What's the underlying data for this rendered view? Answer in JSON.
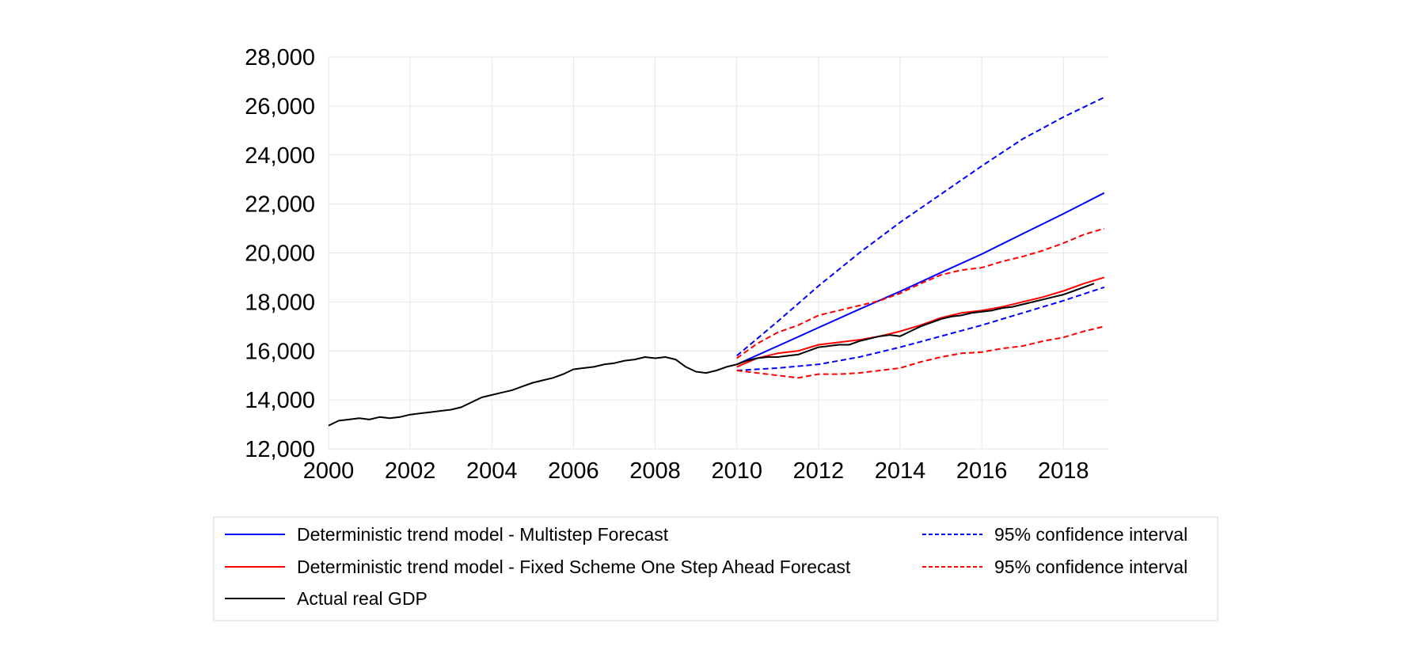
{
  "chart_data": {
    "type": "line",
    "title": "",
    "xlabel": "",
    "ylabel": "",
    "xlim": [
      2000.0,
      2019.1
    ],
    "ylim": [
      12000,
      28000
    ],
    "x_ticks": [
      {
        "value": 2000,
        "label": "2000"
      },
      {
        "value": 2002,
        "label": "2002"
      },
      {
        "value": 2004,
        "label": "2004"
      },
      {
        "value": 2006,
        "label": "2006"
      },
      {
        "value": 2008,
        "label": "2008"
      },
      {
        "value": 2010,
        "label": "2010"
      },
      {
        "value": 2012,
        "label": "2012"
      },
      {
        "value": 2014,
        "label": "2014"
      },
      {
        "value": 2016,
        "label": "2016"
      },
      {
        "value": 2018,
        "label": "2018"
      }
    ],
    "y_ticks": [
      {
        "value": 12000,
        "label": "12,000"
      },
      {
        "value": 14000,
        "label": "14,000"
      },
      {
        "value": 16000,
        "label": "16,000"
      },
      {
        "value": 18000,
        "label": "18,000"
      },
      {
        "value": 20000,
        "label": "20,000"
      },
      {
        "value": 22000,
        "label": "22,000"
      },
      {
        "value": 24000,
        "label": "24,000"
      },
      {
        "value": 26000,
        "label": "26,000"
      },
      {
        "value": 28000,
        "label": "28,000"
      }
    ],
    "grid": true,
    "legend_position": "bottom",
    "series": [
      {
        "name": "Deterministic trend model - Multistep Forecast",
        "color": "#0000ff",
        "dash": "solid",
        "points": [
          [
            2010.0,
            15450
          ],
          [
            2011.0,
            16200
          ],
          [
            2012.0,
            16950
          ],
          [
            2013.0,
            17700
          ],
          [
            2014.0,
            18430
          ],
          [
            2015.0,
            19200
          ],
          [
            2016.0,
            19950
          ],
          [
            2017.0,
            20780
          ],
          [
            2018.0,
            21600
          ],
          [
            2019.0,
            22450
          ]
        ]
      },
      {
        "name": "95% confidence interval",
        "color": "#0000ff",
        "dash": "dashed",
        "points": [
          [
            2010.0,
            15800
          ],
          [
            2011.0,
            17200
          ],
          [
            2012.0,
            18650
          ],
          [
            2013.0,
            20000
          ],
          [
            2014.0,
            21250
          ],
          [
            2015.0,
            22400
          ],
          [
            2016.0,
            23550
          ],
          [
            2017.0,
            24650
          ],
          [
            2018.0,
            25550
          ],
          [
            2019.0,
            26350
          ]
        ]
      },
      {
        "name": "",
        "color": "#0000ff",
        "dash": "dashed",
        "points": [
          [
            2010.0,
            15200
          ],
          [
            2011.0,
            15300
          ],
          [
            2012.0,
            15450
          ],
          [
            2013.0,
            15750
          ],
          [
            2014.0,
            16150
          ],
          [
            2015.0,
            16600
          ],
          [
            2016.0,
            17050
          ],
          [
            2017.0,
            17550
          ],
          [
            2018.0,
            18050
          ],
          [
            2019.0,
            18600
          ]
        ]
      },
      {
        "name": "Deterministic trend model - Fixed Scheme One Step Ahead Forecast",
        "color": "#ff0000",
        "dash": "solid",
        "points": [
          [
            2010.0,
            15350
          ],
          [
            2010.5,
            15700
          ],
          [
            2011.0,
            15900
          ],
          [
            2011.5,
            16000
          ],
          [
            2012.0,
            16250
          ],
          [
            2012.5,
            16350
          ],
          [
            2013.0,
            16450
          ],
          [
            2013.5,
            16600
          ],
          [
            2014.0,
            16800
          ],
          [
            2014.5,
            17050
          ],
          [
            2015.0,
            17350
          ],
          [
            2015.5,
            17550
          ],
          [
            2016.0,
            17650
          ],
          [
            2016.5,
            17800
          ],
          [
            2017.0,
            18000
          ],
          [
            2017.5,
            18200
          ],
          [
            2018.0,
            18450
          ],
          [
            2018.5,
            18750
          ],
          [
            2019.0,
            19000
          ]
        ]
      },
      {
        "name": "95% confidence interval",
        "color": "#ff0000",
        "dash": "dashed",
        "points": [
          [
            2010.0,
            15700
          ],
          [
            2010.5,
            16300
          ],
          [
            2011.0,
            16750
          ],
          [
            2011.5,
            17050
          ],
          [
            2012.0,
            17450
          ],
          [
            2012.5,
            17650
          ],
          [
            2013.0,
            17850
          ],
          [
            2013.5,
            18050
          ],
          [
            2014.0,
            18350
          ],
          [
            2014.5,
            18750
          ],
          [
            2015.0,
            19100
          ],
          [
            2015.5,
            19300
          ],
          [
            2016.0,
            19400
          ],
          [
            2016.5,
            19650
          ],
          [
            2017.0,
            19850
          ],
          [
            2017.5,
            20100
          ],
          [
            2018.0,
            20400
          ],
          [
            2018.5,
            20750
          ],
          [
            2019.0,
            21000
          ]
        ]
      },
      {
        "name": "",
        "color": "#ff0000",
        "dash": "dashed",
        "points": [
          [
            2010.0,
            15200
          ],
          [
            2010.5,
            15100
          ],
          [
            2011.0,
            15000
          ],
          [
            2011.5,
            14900
          ],
          [
            2012.0,
            15050
          ],
          [
            2012.5,
            15050
          ],
          [
            2013.0,
            15100
          ],
          [
            2013.5,
            15200
          ],
          [
            2014.0,
            15300
          ],
          [
            2014.5,
            15550
          ],
          [
            2015.0,
            15750
          ],
          [
            2015.5,
            15900
          ],
          [
            2016.0,
            15950
          ],
          [
            2016.5,
            16100
          ],
          [
            2017.0,
            16200
          ],
          [
            2017.5,
            16400
          ],
          [
            2018.0,
            16550
          ],
          [
            2018.5,
            16800
          ],
          [
            2019.0,
            17000
          ]
        ]
      },
      {
        "name": "Actual real GDP",
        "color": "#000000",
        "dash": "solid",
        "points": [
          [
            2000.0,
            12950
          ],
          [
            2000.25,
            13150
          ],
          [
            2000.5,
            13200
          ],
          [
            2000.75,
            13250
          ],
          [
            2001.0,
            13200
          ],
          [
            2001.25,
            13300
          ],
          [
            2001.5,
            13250
          ],
          [
            2001.75,
            13300
          ],
          [
            2002.0,
            13400
          ],
          [
            2002.25,
            13450
          ],
          [
            2002.5,
            13500
          ],
          [
            2002.75,
            13550
          ],
          [
            2003.0,
            13600
          ],
          [
            2003.25,
            13700
          ],
          [
            2003.5,
            13900
          ],
          [
            2003.75,
            14100
          ],
          [
            2004.0,
            14200
          ],
          [
            2004.25,
            14300
          ],
          [
            2004.5,
            14400
          ],
          [
            2004.75,
            14550
          ],
          [
            2005.0,
            14700
          ],
          [
            2005.25,
            14800
          ],
          [
            2005.5,
            14900
          ],
          [
            2005.75,
            15050
          ],
          [
            2006.0,
            15250
          ],
          [
            2006.25,
            15300
          ],
          [
            2006.5,
            15350
          ],
          [
            2006.75,
            15450
          ],
          [
            2007.0,
            15500
          ],
          [
            2007.25,
            15600
          ],
          [
            2007.5,
            15650
          ],
          [
            2007.75,
            15750
          ],
          [
            2008.0,
            15700
          ],
          [
            2008.25,
            15750
          ],
          [
            2008.5,
            15650
          ],
          [
            2008.75,
            15350
          ],
          [
            2009.0,
            15150
          ],
          [
            2009.25,
            15100
          ],
          [
            2009.5,
            15200
          ],
          [
            2009.75,
            15350
          ],
          [
            2010.0,
            15450
          ],
          [
            2010.25,
            15600
          ],
          [
            2010.5,
            15700
          ],
          [
            2010.75,
            15750
          ],
          [
            2011.0,
            15750
          ],
          [
            2011.25,
            15800
          ],
          [
            2011.5,
            15850
          ],
          [
            2011.75,
            16000
          ],
          [
            2012.0,
            16150
          ],
          [
            2012.25,
            16200
          ],
          [
            2012.5,
            16250
          ],
          [
            2012.75,
            16250
          ],
          [
            2013.0,
            16400
          ],
          [
            2013.25,
            16500
          ],
          [
            2013.5,
            16600
          ],
          [
            2013.75,
            16650
          ],
          [
            2014.0,
            16600
          ],
          [
            2014.25,
            16800
          ],
          [
            2014.5,
            17000
          ],
          [
            2014.75,
            17150
          ],
          [
            2015.0,
            17300
          ],
          [
            2015.25,
            17400
          ],
          [
            2015.5,
            17450
          ],
          [
            2015.75,
            17550
          ],
          [
            2016.0,
            17600
          ],
          [
            2016.25,
            17650
          ],
          [
            2016.5,
            17750
          ],
          [
            2016.75,
            17800
          ],
          [
            2017.0,
            17900
          ],
          [
            2017.25,
            18000
          ],
          [
            2017.5,
            18100
          ],
          [
            2017.75,
            18200
          ],
          [
            2018.0,
            18300
          ],
          [
            2018.25,
            18450
          ],
          [
            2018.5,
            18600
          ],
          [
            2018.75,
            18750
          ]
        ]
      }
    ],
    "legend": [
      {
        "label": "Deterministic trend model - Multistep Forecast",
        "color": "#0000ff",
        "dash": "solid"
      },
      {
        "label": "Deterministic trend model - Fixed Scheme One Step Ahead Forecast",
        "color": "#ff0000",
        "dash": "solid"
      },
      {
        "label": "Actual real GDP",
        "color": "#000000",
        "dash": "solid"
      },
      {
        "label": "95% confidence interval",
        "color": "#0000ff",
        "dash": "dashed"
      },
      {
        "label": "95% confidence interval",
        "color": "#ff0000",
        "dash": "dashed"
      }
    ]
  }
}
